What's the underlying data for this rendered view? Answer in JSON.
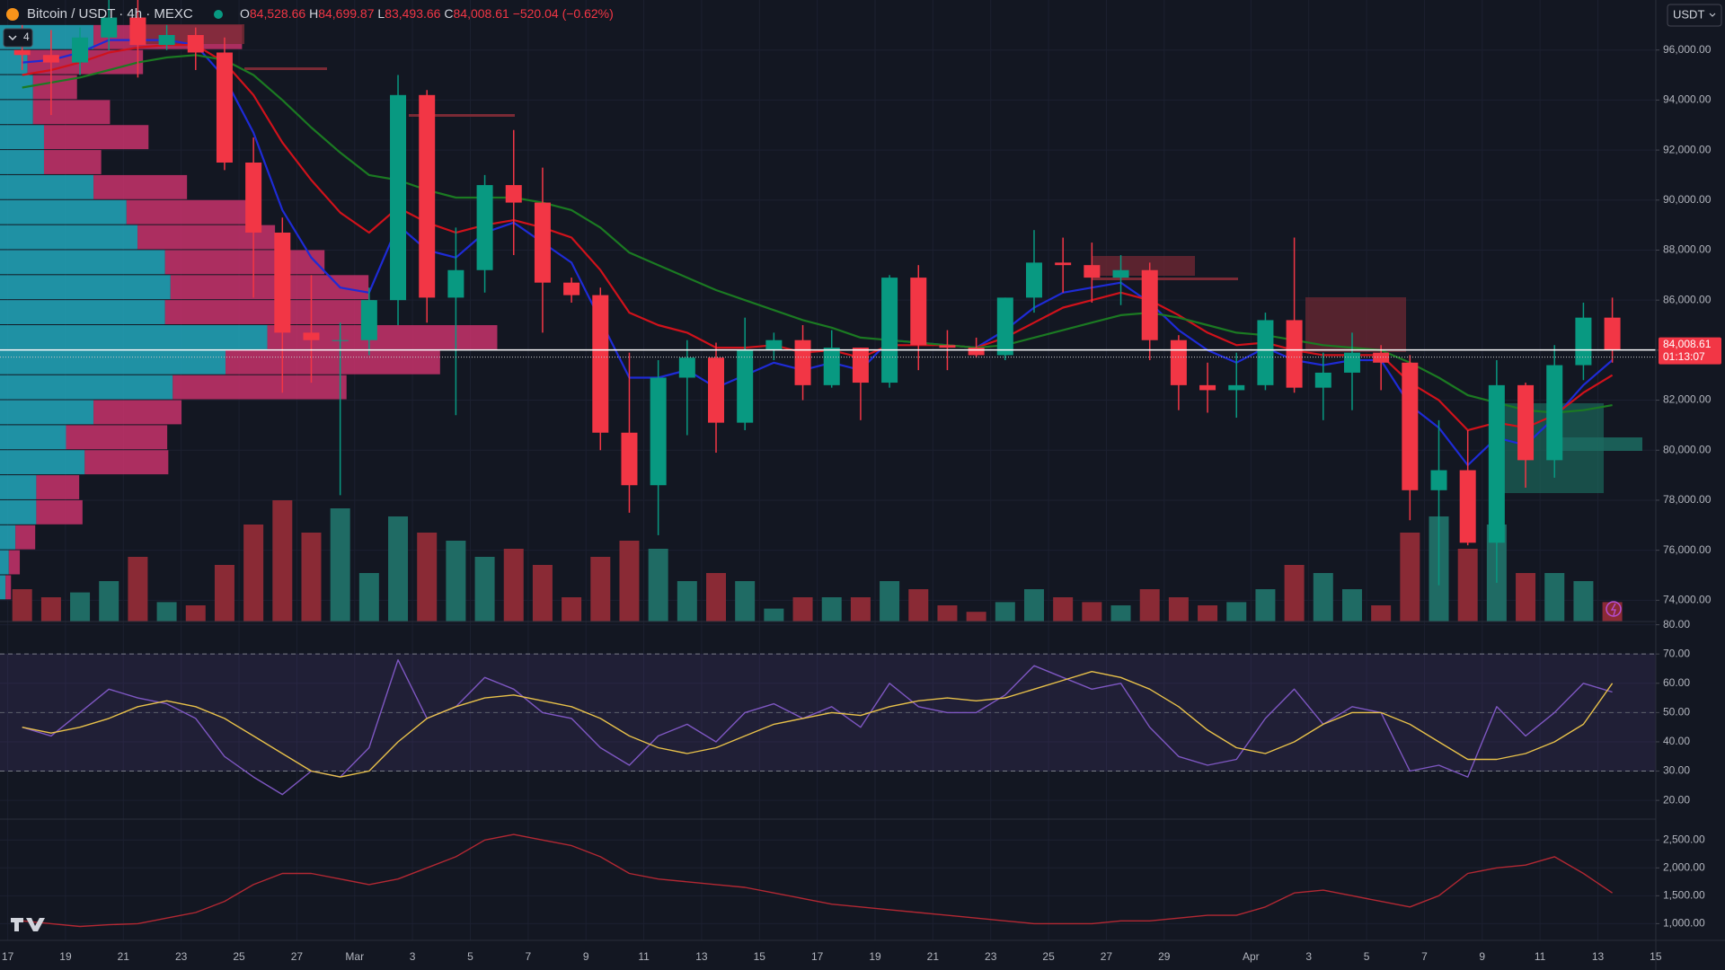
{
  "header": {
    "symbol": "Bitcoin / USDT · 4h · MEXC",
    "ohlc": [
      {
        "key": "O",
        "value": "84,528.66"
      },
      {
        "key": "H",
        "value": "84,699.87"
      },
      {
        "key": "L",
        "value": "83,493.66"
      },
      {
        "key": "C",
        "value": "84,008.61"
      }
    ],
    "change": "−520.04 (−0.62%)",
    "currency": "USDT",
    "indicator_count": 4
  },
  "chart_data": [
    {
      "type": "candlestick",
      "categories": [
        "17",
        null,
        "19",
        null,
        "21",
        null,
        "23",
        null,
        "25",
        null,
        "27",
        null,
        "Mar",
        null,
        "3",
        null,
        "5",
        null,
        "7",
        null,
        "9",
        null,
        "11",
        null,
        "13",
        null,
        "15",
        null,
        "17",
        null,
        "19",
        null,
        "21",
        null,
        "23",
        null,
        "25",
        null,
        "27",
        null,
        "29",
        null,
        null,
        "Apr",
        null,
        "3",
        null,
        "5",
        null,
        "7",
        null,
        "9",
        null,
        "11",
        null,
        "13",
        null,
        "15"
      ],
      "open": [
        96000,
        95800,
        95500,
        96500,
        97300,
        96200,
        96600,
        95900,
        91500,
        88700,
        84700,
        84400,
        84400,
        86000,
        94200,
        86100,
        87200,
        90600,
        89900,
        86700,
        86200,
        80700,
        78600,
        82900,
        83700,
        81100,
        84000,
        84400,
        82600,
        84100,
        82700,
        86900,
        84200,
        84100,
        83800,
        86100,
        87500,
        87400,
        86900,
        87200,
        84400,
        82600,
        82400,
        82600,
        85200,
        82500,
        83100,
        83900,
        83500,
        78400,
        79200,
        76300,
        82600,
        79600,
        83400,
        85300,
        null,
        null
      ],
      "high": [
        97000,
        96800,
        96900,
        98000,
        99400,
        97000,
        96900,
        96500,
        92500,
        89300,
        87000,
        85100,
        86500,
        95000,
        94400,
        88900,
        91000,
        92800,
        91300,
        86900,
        86500,
        83900,
        83600,
        84400,
        84300,
        85300,
        84700,
        85000,
        84800,
        84100,
        87000,
        87400,
        84800,
        84500,
        86100,
        88800,
        88500,
        88300,
        87800,
        87500,
        84600,
        83500,
        83900,
        85500,
        88500,
        83900,
        84700,
        84200,
        83800,
        81200,
        80800,
        83600,
        82700,
        84200,
        85900,
        86100,
        null,
        null
      ],
      "low": [
        95200,
        93400,
        95000,
        96000,
        94900,
        96000,
        95200,
        91200,
        86100,
        82300,
        82700,
        78200,
        83800,
        85000,
        85100,
        81400,
        86300,
        87800,
        84700,
        85900,
        80000,
        77500,
        76600,
        80600,
        79900,
        80800,
        83600,
        82000,
        82500,
        81200,
        82500,
        83200,
        83200,
        83700,
        83600,
        85500,
        86300,
        85900,
        85800,
        83600,
        81600,
        81500,
        81300,
        82400,
        82300,
        81200,
        81600,
        82400,
        77200,
        74600,
        76200,
        74700,
        78500,
        78900,
        82800,
        83500,
        null,
        null
      ],
      "close": [
        95800,
        95500,
        96500,
        97300,
        96200,
        96600,
        95900,
        91500,
        88700,
        84700,
        84400,
        84400,
        86000,
        94200,
        86100,
        87200,
        90600,
        89900,
        86700,
        86200,
        80700,
        78600,
        82900,
        83700,
        81100,
        84000,
        84400,
        82600,
        84100,
        82700,
        86900,
        84200,
        84100,
        83800,
        86100,
        87500,
        87400,
        86900,
        87200,
        84400,
        82600,
        82400,
        82600,
        85200,
        82500,
        83100,
        83900,
        83500,
        78400,
        79200,
        76300,
        82600,
        79600,
        83400,
        85300,
        84008.61,
        null,
        null
      ],
      "volume": [
        20,
        15,
        18,
        25,
        40,
        12,
        10,
        35,
        60,
        75,
        55,
        70,
        30,
        65,
        55,
        50,
        40,
        45,
        35,
        15,
        40,
        50,
        45,
        25,
        30,
        25,
        8,
        15,
        15,
        15,
        25,
        20,
        10,
        6,
        12,
        20,
        15,
        12,
        10,
        20,
        15,
        10,
        12,
        20,
        35,
        30,
        20,
        10,
        55,
        65,
        45,
        60,
        30,
        30,
        25,
        12,
        null,
        null
      ],
      "up_color": "#089981",
      "down_color": "#f23645",
      "volume_up_color": "#1f6b64",
      "volume_down_color": "#8a2a35",
      "overlays": [
        {
          "color": "#1e2bd6",
          "values": [
            95500,
            95600,
            95900,
            96400,
            96400,
            96400,
            96200,
            94900,
            92700,
            89600,
            87700,
            86500,
            86300,
            89000,
            88000,
            87700,
            88700,
            89100,
            88300,
            87500,
            85200,
            82900,
            82900,
            83200,
            82500,
            83000,
            83500,
            83200,
            83500,
            83200,
            84400,
            84300,
            84200,
            84100,
            84800,
            85700,
            86300,
            86500,
            86700,
            85900,
            84800,
            84000,
            83500,
            84100,
            83600,
            83400,
            83600,
            83600,
            81800,
            80900,
            79400,
            80500,
            80200,
            81300,
            82600,
            83600,
            null,
            null
          ]
        },
        {
          "color": "#d0121b",
          "values": [
            95000,
            95200,
            95500,
            95900,
            96100,
            96200,
            96200,
            95500,
            94200,
            92300,
            90800,
            89500,
            88700,
            89700,
            89100,
            88700,
            89000,
            89200,
            88900,
            88500,
            87200,
            85500,
            85000,
            84700,
            84100,
            84100,
            84200,
            83900,
            84000,
            83700,
            84200,
            84200,
            84200,
            84100,
            84500,
            85100,
            85700,
            86000,
            86300,
            86000,
            85400,
            84700,
            84200,
            84300,
            84000,
            83800,
            83800,
            83800,
            82700,
            82000,
            80800,
            81100,
            80900,
            81400,
            82300,
            83000,
            null,
            null
          ]
        },
        {
          "color": "#1b7a22",
          "values": [
            94500,
            94700,
            94900,
            95200,
            95500,
            95700,
            95800,
            95600,
            95000,
            94000,
            92900,
            91900,
            91000,
            90800,
            90400,
            90100,
            90100,
            90100,
            89900,
            89600,
            88900,
            87900,
            87400,
            86900,
            86400,
            86000,
            85600,
            85200,
            84900,
            84500,
            84400,
            84300,
            84200,
            84100,
            84200,
            84500,
            84800,
            85100,
            85400,
            85500,
            85300,
            85000,
            84700,
            84600,
            84400,
            84200,
            84100,
            84000,
            83500,
            82900,
            82200,
            81900,
            81600,
            81500,
            81600,
            81800,
            null,
            null
          ]
        }
      ],
      "volume_profile": {
        "prices": [
          96500,
          95500,
          94500,
          93500,
          92500,
          91500,
          90500,
          89500,
          88500,
          87500,
          86500,
          85500,
          84500,
          83500,
          82500,
          81500,
          80500,
          79500,
          78500,
          77500,
          76500,
          75500,
          74500
        ],
        "up": [
          85,
          25,
          30,
          30,
          40,
          40,
          85,
          115,
          125,
          150,
          155,
          150,
          243,
          205,
          157,
          85,
          60,
          77,
          33,
          33,
          14,
          8,
          5
        ],
        "down": [
          135,
          105,
          40,
          70,
          95,
          52,
          85,
          120,
          125,
          145,
          180,
          190,
          209,
          195,
          158,
          80,
          92,
          76,
          39,
          42,
          18,
          10,
          5
        ],
        "up_color": "#22a7bb",
        "down_color": "#c8336b"
      },
      "last_price": {
        "value": 84008.61,
        "label": "84,008.61",
        "countdown": "01:13:07",
        "color": "#f23645"
      },
      "ylim": [
        73150,
        98000
      ],
      "yticks": [
        {
          "value": 74000,
          "label": "74,000.00"
        },
        {
          "value": 76000,
          "label": "76,000.00"
        },
        {
          "value": 78000,
          "label": "78,000.00"
        },
        {
          "value": 80000,
          "label": "80,000.00"
        },
        {
          "value": 82000,
          "label": "82,000.00"
        },
        {
          "value": 84000,
          "label": "84,000.00"
        },
        {
          "value": 86000,
          "label": "86,000.00"
        },
        {
          "value": 88000,
          "label": "88,000.00"
        },
        {
          "value": 90000,
          "label": "90,000.00"
        },
        {
          "value": 92000,
          "label": "92,000.00"
        },
        {
          "value": 94000,
          "label": "94,000.00"
        },
        {
          "value": 96000,
          "label": "96,000.00"
        }
      ],
      "grid": true
    },
    {
      "type": "line",
      "series": [
        {
          "color": "#7e57c2",
          "values": [
            45,
            42,
            50,
            58,
            55,
            53,
            48,
            35,
            28,
            22,
            30,
            28,
            38,
            68,
            48,
            52,
            62,
            58,
            50,
            48,
            38,
            32,
            42,
            46,
            40,
            50,
            53,
            48,
            52,
            45,
            60,
            52,
            50,
            50,
            56,
            66,
            62,
            58,
            60,
            45,
            35,
            32,
            34,
            48,
            58,
            46,
            52,
            50,
            30,
            32,
            28,
            52,
            42,
            50,
            60,
            57,
            null,
            null
          ]
        },
        {
          "color": "#e8c14a",
          "values": [
            45,
            43,
            45,
            48,
            52,
            54,
            52,
            48,
            42,
            36,
            30,
            28,
            30,
            40,
            48,
            52,
            55,
            56,
            54,
            52,
            48,
            42,
            38,
            36,
            38,
            42,
            46,
            48,
            50,
            49,
            52,
            54,
            55,
            54,
            55,
            58,
            61,
            64,
            62,
            58,
            52,
            44,
            38,
            36,
            40,
            46,
            50,
            50,
            46,
            40,
            34,
            34,
            36,
            40,
            46,
            60,
            null,
            null
          ]
        }
      ],
      "band": [
        30,
        70
      ],
      "midline": 50,
      "ylim": [
        13.6,
        81.1
      ],
      "yticks": [
        {
          "value": 20,
          "label": "20.00"
        },
        {
          "value": 30,
          "label": "30.00"
        },
        {
          "value": 40,
          "label": "40.00"
        },
        {
          "value": 50,
          "label": "50.00"
        },
        {
          "value": 60,
          "label": "60.00"
        },
        {
          "value": 70,
          "label": "70.00"
        },
        {
          "value": 80,
          "label": "80.00"
        }
      ]
    },
    {
      "type": "line",
      "series": [
        {
          "color": "#b22833",
          "values": [
            1050,
            1000,
            950,
            980,
            1000,
            1100,
            1200,
            1400,
            1700,
            1900,
            1900,
            1800,
            1700,
            1800,
            2000,
            2200,
            2500,
            2600,
            2500,
            2400,
            2200,
            1900,
            1800,
            1750,
            1700,
            1650,
            1550,
            1450,
            1350,
            1300,
            1250,
            1200,
            1150,
            1100,
            1050,
            1000,
            1000,
            1000,
            1050,
            1050,
            1100,
            1150,
            1150,
            1300,
            1550,
            1600,
            1500,
            1400,
            1300,
            1500,
            1900,
            2000,
            2050,
            2200,
            1900,
            1550,
            null,
            null
          ]
        }
      ],
      "ylim": [
        700,
        2875
      ],
      "yticks": [
        {
          "value": 1000,
          "label": "1,000.00"
        },
        {
          "value": 1500,
          "label": "1,500.00"
        },
        {
          "value": 2000,
          "label": "2,000.00"
        },
        {
          "value": 2500,
          "label": "2,500.00"
        }
      ]
    }
  ]
}
